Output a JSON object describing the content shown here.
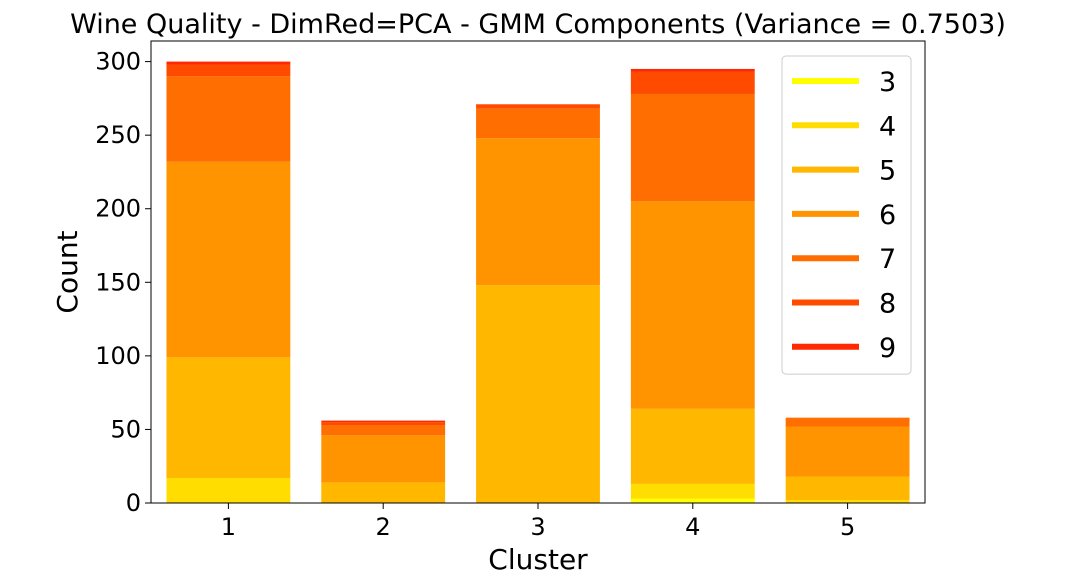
{
  "chart_data": {
    "type": "bar",
    "stacked": true,
    "title": "Wine Quality - DimRed=PCA - GMM Components (Variance = 0.7503)",
    "xlabel": "Cluster",
    "ylabel": "Count",
    "categories": [
      "1",
      "2",
      "3",
      "4",
      "5"
    ],
    "yticks": [
      0,
      50,
      100,
      150,
      200,
      250,
      300
    ],
    "ylim": [
      0,
      314
    ],
    "grid": false,
    "legend_position": "top-right",
    "series": [
      {
        "name": "3",
        "color": "#ffff00",
        "values": [
          0,
          0,
          0,
          3,
          0
        ]
      },
      {
        "name": "4",
        "color": "#ffdd00",
        "values": [
          17,
          0,
          0,
          10,
          2
        ]
      },
      {
        "name": "5",
        "color": "#ffb700",
        "values": [
          82,
          14,
          148,
          51,
          16
        ]
      },
      {
        "name": "6",
        "color": "#ff9400",
        "values": [
          133,
          32,
          100,
          141,
          34
        ]
      },
      {
        "name": "7",
        "color": "#ff6e00",
        "values": [
          58,
          7,
          20,
          73,
          6
        ]
      },
      {
        "name": "8",
        "color": "#ff4b00",
        "values": [
          8,
          2,
          3,
          15,
          0
        ]
      },
      {
        "name": "9",
        "color": "#ff2800",
        "values": [
          2,
          1,
          0,
          2,
          0
        ]
      }
    ]
  }
}
